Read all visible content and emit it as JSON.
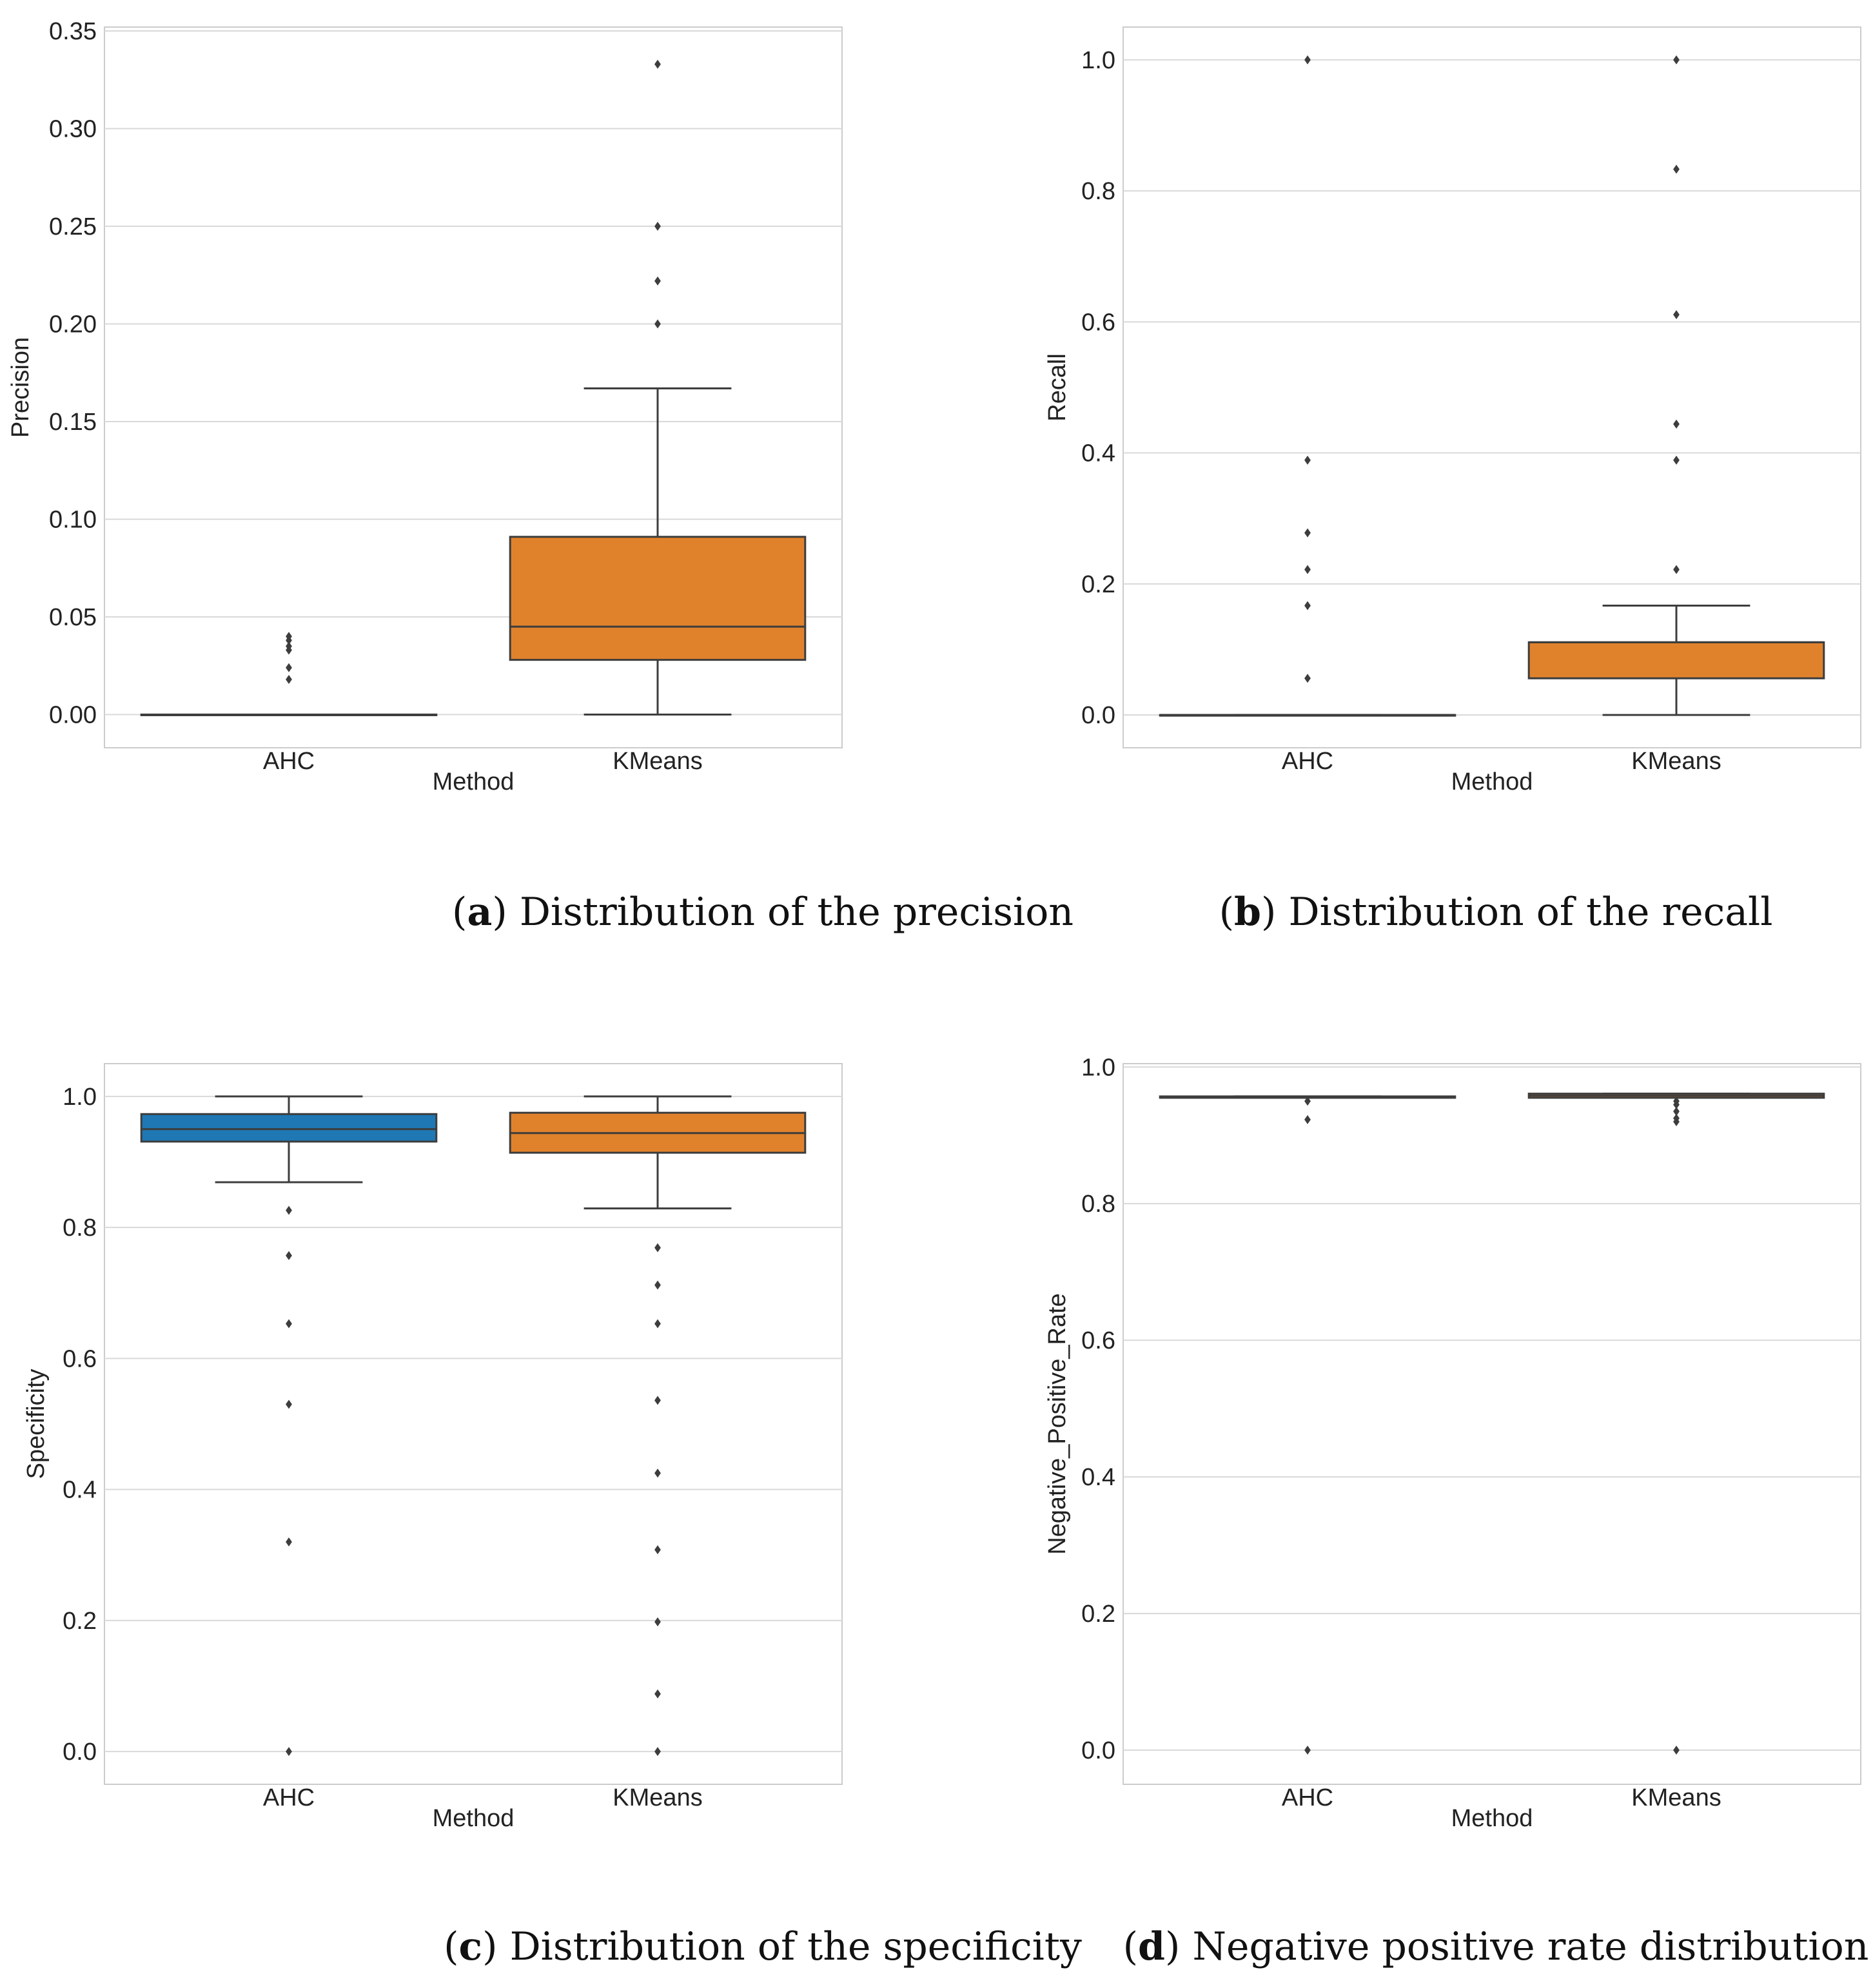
{
  "chart_data": [
    {
      "type": "box",
      "panel": "a",
      "caption_label": "a",
      "caption_text": "Distribution of the precision",
      "xlabel": "Method",
      "ylabel": "Precision",
      "ylim": [
        -0.017,
        0.352
      ],
      "yticks": [
        0.0,
        0.05,
        0.1,
        0.15,
        0.2,
        0.25,
        0.3,
        0.35
      ],
      "ytick_labels": [
        "0.00",
        "0.05",
        "0.10",
        "0.15",
        "0.20",
        "0.25",
        "0.30",
        "0.35"
      ],
      "categories": [
        "AHC",
        "KMeans"
      ],
      "boxes": [
        {
          "name": "AHC",
          "q1": 0.0,
          "median": 0.0,
          "q3": 0.0,
          "whisker_low": 0.0,
          "whisker_high": 0.0,
          "color": "#1f77b4",
          "outliers": [
            0.018,
            0.024,
            0.033,
            0.035,
            0.038,
            0.04
          ]
        },
        {
          "name": "KMeans",
          "q1": 0.028,
          "median": 0.045,
          "q3": 0.091,
          "whisker_low": 0.0,
          "whisker_high": 0.167,
          "color": "#e0822c",
          "outliers": [
            0.2,
            0.222,
            0.25,
            0.333
          ]
        }
      ]
    },
    {
      "type": "box",
      "panel": "b",
      "caption_label": "b",
      "caption_text": "Distribution of the recall",
      "xlabel": "Method",
      "ylabel": "Recall",
      "ylim": [
        -0.05,
        1.05
      ],
      "yticks": [
        0.0,
        0.2,
        0.4,
        0.6,
        0.8,
        1.0
      ],
      "ytick_labels": [
        "0.0",
        "0.2",
        "0.4",
        "0.6",
        "0.8",
        "1.0"
      ],
      "categories": [
        "AHC",
        "KMeans"
      ],
      "boxes": [
        {
          "name": "AHC",
          "q1": 0.0,
          "median": 0.0,
          "q3": 0.0,
          "whisker_low": 0.0,
          "whisker_high": 0.0,
          "color": "#1f77b4",
          "outliers": [
            0.056,
            0.167,
            0.222,
            0.278,
            0.389,
            1.0
          ]
        },
        {
          "name": "KMeans",
          "q1": 0.056,
          "median": 0.111,
          "q3": 0.111,
          "whisker_low": 0.0,
          "whisker_high": 0.167,
          "color": "#e0822c",
          "outliers": [
            0.222,
            0.389,
            0.444,
            0.611,
            0.833,
            1.0
          ]
        }
      ]
    },
    {
      "type": "box",
      "panel": "c",
      "caption_label": "c",
      "caption_text": "Distribution of the specificity",
      "xlabel": "Method",
      "ylabel": "Specificity",
      "ylim": [
        -0.05,
        1.05
      ],
      "yticks": [
        0.0,
        0.2,
        0.4,
        0.6,
        0.8,
        1.0
      ],
      "ytick_labels": [
        "0.0",
        "0.2",
        "0.4",
        "0.6",
        "0.8",
        "1.0"
      ],
      "categories": [
        "AHC",
        "KMeans"
      ],
      "boxes": [
        {
          "name": "AHC",
          "q1": 0.931,
          "median": 0.95,
          "q3": 0.973,
          "whisker_low": 0.869,
          "whisker_high": 1.0,
          "color": "#1f77b4",
          "outliers": [
            0.0,
            0.32,
            0.53,
            0.653,
            0.757,
            0.826
          ]
        },
        {
          "name": "KMeans",
          "q1": 0.914,
          "median": 0.944,
          "q3": 0.975,
          "whisker_low": 0.829,
          "whisker_high": 1.0,
          "color": "#e0822c",
          "outliers": [
            0.0,
            0.088,
            0.198,
            0.308,
            0.425,
            0.536,
            0.653,
            0.712,
            0.769
          ]
        }
      ]
    },
    {
      "type": "box",
      "panel": "d",
      "caption_label": "d",
      "caption_text": "Negative positive rate distribution",
      "xlabel": "Method",
      "ylabel": "Negative_Positive_Rate",
      "ylim": [
        -0.05,
        1.005
      ],
      "yticks": [
        0.0,
        0.2,
        0.4,
        0.6,
        0.8,
        1.0
      ],
      "ytick_labels": [
        "0.0",
        "0.2",
        "0.4",
        "0.6",
        "0.8",
        "1.0"
      ],
      "categories": [
        "AHC",
        "KMeans"
      ],
      "boxes": [
        {
          "name": "AHC",
          "q1": 0.955,
          "median": 0.956,
          "q3": 0.957,
          "whisker_low": 0.955,
          "whisker_high": 0.957,
          "color": "#1f77b4",
          "outliers": [
            0.0,
            0.923,
            0.95
          ]
        },
        {
          "name": "KMeans",
          "q1": 0.955,
          "median": 0.958,
          "q3": 0.961,
          "whisker_low": 0.955,
          "whisker_high": 0.961,
          "color": "#e0822c",
          "outliers": [
            0.0,
            0.92,
            0.925,
            0.935,
            0.945,
            0.95
          ]
        }
      ]
    }
  ]
}
